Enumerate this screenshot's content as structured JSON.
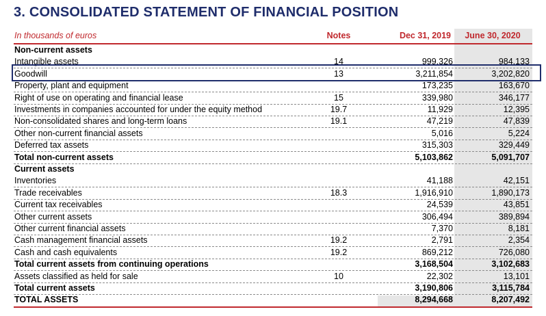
{
  "title": "3. CONSOLIDATED STATEMENT OF FINANCIAL POSITION",
  "header": {
    "label": "In thousands of euros",
    "notes": "Notes",
    "col1": "Dec 31, 2019",
    "col2": "June 30, 2020"
  },
  "rows": [
    {
      "label": "Non-current assets",
      "notes": "",
      "v1": "",
      "v2": "",
      "bold": true
    },
    {
      "label": "Intangible assets",
      "notes": "14",
      "v1": "999,326",
      "v2": "984,133"
    },
    {
      "label": "Goodwill",
      "notes": "13",
      "v1": "3,211,854",
      "v2": "3,202,820"
    },
    {
      "label": "Property, plant and equipment",
      "notes": "",
      "v1": "173,235",
      "v2": "163,670"
    },
    {
      "label": "Right of use on operating and financial lease",
      "notes": "15",
      "v1": "339,980",
      "v2": "346,177"
    },
    {
      "label": "Investments in companies accounted for under the equity method",
      "notes": "19.7",
      "v1": "11,929",
      "v2": "12,395"
    },
    {
      "label": "Non-consolidated shares and long-term loans",
      "notes": "19.1",
      "v1": "47,219",
      "v2": "47,839"
    },
    {
      "label": "Other non-current financial assets",
      "notes": "",
      "v1": "5,016",
      "v2": "5,224"
    },
    {
      "label": "Deferred tax assets",
      "notes": "",
      "v1": "315,303",
      "v2": "329,449"
    },
    {
      "label": "Total non-current assets",
      "notes": "",
      "v1": "5,103,862",
      "v2": "5,091,707",
      "bold": true
    },
    {
      "label": "Current assets",
      "notes": "",
      "v1": "",
      "v2": "",
      "bold": true
    },
    {
      "label": "Inventories",
      "notes": "",
      "v1": "41,188",
      "v2": "42,151"
    },
    {
      "label": "Trade receivables",
      "notes": "18.3",
      "v1": "1,916,910",
      "v2": "1,890,173"
    },
    {
      "label": "Current tax receivables",
      "notes": "",
      "v1": "24,539",
      "v2": "43,851"
    },
    {
      "label": "Other current assets",
      "notes": "",
      "v1": "306,494",
      "v2": "389,894"
    },
    {
      "label": "Other current financial assets",
      "notes": "",
      "v1": "7,370",
      "v2": "8,181"
    },
    {
      "label": "Cash management financial assets",
      "notes": "19.2",
      "v1": "2,791",
      "v2": "2,354"
    },
    {
      "label": "Cash and cash equivalents",
      "notes": "19.2",
      "v1": "869,212",
      "v2": "726,080"
    },
    {
      "label": "Total current assets from continuing operations",
      "notes": "",
      "v1": "3,168,504",
      "v2": "3,102,683",
      "bold": true
    },
    {
      "label": "Assets classified as held for sale",
      "notes": "10",
      "v1": "22,302",
      "v2": "13,101"
    },
    {
      "label": "Total current assets",
      "notes": "",
      "v1": "3,190,806",
      "v2": "3,115,784",
      "bold": true
    },
    {
      "label": "TOTAL ASSETS",
      "notes": "",
      "v1": "8,294,668",
      "v2": "8,207,492",
      "bold": true
    }
  ],
  "colors": {
    "title": "#1f2d6b",
    "accent_red": "#c0282d",
    "highlight_box": "#1f2d6b",
    "column_shade": "#e6e6e6"
  }
}
